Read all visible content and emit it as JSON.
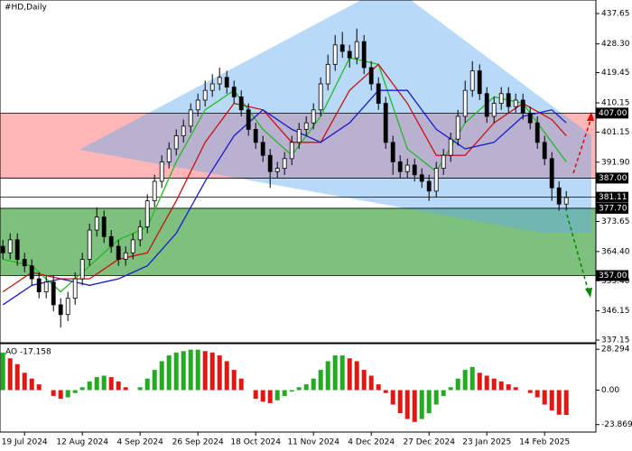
{
  "chart_data": {
    "type": "candlestick",
    "title": "#HD,Daily",
    "xlim": [
      -0.4,
      82.1
    ],
    "xticks": [
      {
        "value": 3,
        "label": "19 Jul 2024"
      },
      {
        "value": 11,
        "label": "12 Aug 2024"
      },
      {
        "value": 19,
        "label": "4 Sep 2024"
      },
      {
        "value": 27,
        "label": "26 Sep 2024"
      },
      {
        "value": 35,
        "label": "18 Oct 2024"
      },
      {
        "value": 43,
        "label": "11 Nov 2024"
      },
      {
        "value": 51,
        "label": "4 Dec 2024"
      },
      {
        "value": 59,
        "label": "27 Dec 2024"
      },
      {
        "value": 67,
        "label": "23 Jan 2025"
      },
      {
        "value": 75,
        "label": "14 Feb 2025"
      }
    ],
    "ylim": [
      336.32,
      441.81
    ],
    "yticks": [
      437.65,
      {
        "value": 428.3,
        "label": "428.30"
      },
      419.45,
      410.15,
      401.15,
      {
        "value": 391.9,
        "label": "391.90"
      },
      373.65,
      {
        "value": 364.4,
        "label": "364.40"
      },
      {
        "value": 355.4,
        "label": "355.40"
      },
      346.15,
      337.15
    ],
    "candle_color": "#000000",
    "open": [
      366,
      364,
      368,
      362,
      360,
      356,
      352,
      355,
      348,
      345,
      350,
      356,
      362,
      371,
      375,
      369,
      366,
      362,
      364,
      368,
      372,
      380,
      386,
      392,
      396,
      400,
      403,
      408,
      411,
      414,
      416,
      418,
      415,
      412,
      408,
      402,
      398,
      394,
      389,
      390,
      393,
      398,
      402,
      404,
      408,
      416,
      422,
      428,
      426,
      424,
      429,
      421,
      416,
      410,
      398,
      392,
      389,
      391,
      388,
      386,
      383,
      390,
      394,
      399,
      406,
      414,
      420,
      413,
      406,
      410,
      413,
      409,
      411,
      407,
      404,
      398,
      393,
      384,
      379
    ],
    "high": [
      368,
      370,
      370,
      364,
      362,
      358,
      357,
      357,
      350,
      352,
      358,
      364,
      373,
      378,
      377,
      371,
      368,
      366,
      370,
      374,
      382,
      388,
      394,
      398,
      402,
      405,
      410,
      413,
      417,
      419,
      421,
      420,
      417,
      414,
      410,
      404,
      400,
      396,
      392,
      395,
      400,
      404,
      406,
      410,
      418,
      425,
      431,
      432,
      428,
      433,
      431,
      423,
      418,
      412,
      400,
      394,
      393,
      393,
      390,
      388,
      392,
      396,
      401,
      408,
      417,
      423,
      422,
      415,
      412,
      415,
      415,
      413,
      413,
      409,
      406,
      400,
      395,
      386,
      383
    ],
    "low": [
      362,
      362,
      360,
      358,
      354,
      350,
      350,
      346,
      341,
      343,
      348,
      354,
      360,
      369,
      367,
      364,
      360,
      360,
      362,
      366,
      370,
      378,
      384,
      390,
      394,
      398,
      401,
      406,
      409,
      412,
      414,
      413,
      410,
      406,
      400,
      396,
      392,
      384,
      387,
      388,
      391,
      396,
      400,
      402,
      406,
      414,
      420,
      424,
      421,
      422,
      419,
      414,
      408,
      396,
      388,
      387,
      387,
      386,
      384,
      380,
      381,
      388,
      392,
      397,
      404,
      412,
      411,
      404,
      404,
      408,
      407,
      407,
      405,
      402,
      396,
      391,
      380,
      377,
      377
    ],
    "close": [
      364,
      368,
      362,
      360,
      356,
      352,
      355,
      348,
      345,
      350,
      356,
      362,
      371,
      375,
      369,
      366,
      362,
      364,
      368,
      372,
      380,
      386,
      392,
      396,
      400,
      403,
      408,
      411,
      414,
      416,
      418,
      415,
      412,
      408,
      402,
      398,
      394,
      389,
      390,
      393,
      398,
      402,
      404,
      408,
      416,
      422,
      428,
      426,
      424,
      429,
      421,
      416,
      410,
      398,
      392,
      389,
      391,
      388,
      386,
      383,
      390,
      394,
      399,
      406,
      414,
      420,
      413,
      406,
      410,
      413,
      409,
      411,
      407,
      404,
      398,
      393,
      384,
      379,
      381
    ],
    "moving_averages": [
      {
        "color": "#22bb22",
        "x": [
          0,
          4,
          8,
          12,
          16,
          20,
          24,
          28,
          32,
          36,
          40,
          44,
          48,
          52,
          56,
          60,
          64,
          68,
          72,
          76,
          78
        ],
        "values": [
          362,
          360,
          352,
          360,
          368,
          372,
          392,
          408,
          414,
          402,
          394,
          406,
          424,
          422,
          396,
          389,
          404,
          412,
          410,
          398,
          392
        ]
      },
      {
        "color": "#cc1111",
        "x": [
          0,
          4,
          8,
          12,
          16,
          20,
          24,
          28,
          32,
          36,
          40,
          44,
          48,
          52,
          56,
          60,
          64,
          68,
          72,
          76,
          78
        ],
        "values": [
          352,
          358,
          356,
          356,
          362,
          364,
          380,
          398,
          410,
          408,
          398,
          398,
          414,
          422,
          410,
          394,
          394,
          404,
          410,
          405,
          400
        ]
      },
      {
        "color": "#1a1acc",
        "x": [
          0,
          4,
          8,
          12,
          16,
          20,
          24,
          28,
          32,
          36,
          40,
          44,
          48,
          52,
          56,
          60,
          64,
          68,
          72,
          76,
          78
        ],
        "values": [
          348,
          354,
          356,
          354,
          356,
          360,
          370,
          386,
          400,
          408,
          402,
          398,
          404,
          414,
          414,
          402,
          396,
          398,
          406,
          408,
          404
        ]
      }
    ],
    "zones": [
      {
        "top": 407,
        "bottom": 387,
        "color": "rgba(255,110,110,0.5)"
      },
      {
        "top": 377.7,
        "bottom": 357,
        "color": "rgba(40,150,40,0.6)"
      }
    ],
    "levels": [
      {
        "value": 407,
        "label": "407.00"
      },
      {
        "value": 387,
        "label": "387.00"
      },
      {
        "value": 381.11,
        "label": "381.11"
      },
      {
        "value": 377.7,
        "label": "377.70"
      },
      {
        "value": 357,
        "label": "357.00"
      }
    ],
    "indicator": {
      "type": "bar",
      "name": "AO",
      "up_color": "#22aa22",
      "down_color": "#ee1111",
      "ylim": [
        -29.02,
        32.16
      ],
      "yticks": [
        28.294,
        {
          "value": 0,
          "label": "0.00"
        },
        -23.869
      ],
      "values": [
        26,
        22,
        18,
        12,
        8,
        4,
        0,
        -4,
        -6,
        -5,
        -2,
        2,
        6,
        9,
        10,
        9,
        6,
        2,
        0,
        2,
        8,
        14,
        20,
        24,
        26,
        27,
        28,
        28,
        27,
        26,
        24,
        20,
        14,
        8,
        0,
        -6,
        -8,
        -9,
        -7,
        -4,
        -1,
        2,
        4,
        8,
        14,
        20,
        24,
        24,
        22,
        20,
        14,
        10,
        4,
        -2,
        -10,
        -16,
        -20,
        -22,
        -20,
        -16,
        -10,
        -4,
        2,
        8,
        14,
        16,
        12,
        10,
        8,
        6,
        4,
        2,
        0,
        -2,
        -5,
        -10,
        -14,
        -17,
        -17.158
      ]
    }
  }
}
